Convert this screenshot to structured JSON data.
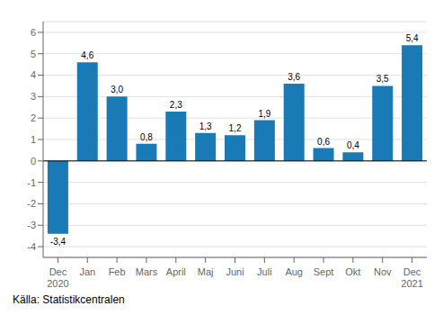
{
  "chart_data": {
    "type": "bar",
    "categories": [
      "Dec\n2020",
      "Jan",
      "Feb",
      "Mars",
      "April",
      "Maj",
      "Juni",
      "Juli",
      "Aug",
      "Sept",
      "Okt",
      "Nov",
      "Dec\n2021"
    ],
    "values": [
      -3.4,
      4.6,
      3.0,
      0.8,
      2.3,
      1.3,
      1.2,
      1.9,
      3.6,
      0.6,
      0.4,
      3.5,
      5.4
    ],
    "value_labels": [
      "-3,4",
      "4,6",
      "3,0",
      "0,8",
      "2,3",
      "1,3",
      "1,2",
      "1,9",
      "3,6",
      "0,6",
      "0,4",
      "3,5",
      "5,4"
    ],
    "data_labels": true,
    "color": "#1a7ab5",
    "ylim": [
      -4.5,
      6.5
    ],
    "yticks": [
      -4,
      -3,
      -2,
      -1,
      0,
      1,
      2,
      3,
      4,
      5,
      6
    ],
    "grid": true,
    "annotations": [
      "Källa: Statistikcentralen"
    ]
  }
}
